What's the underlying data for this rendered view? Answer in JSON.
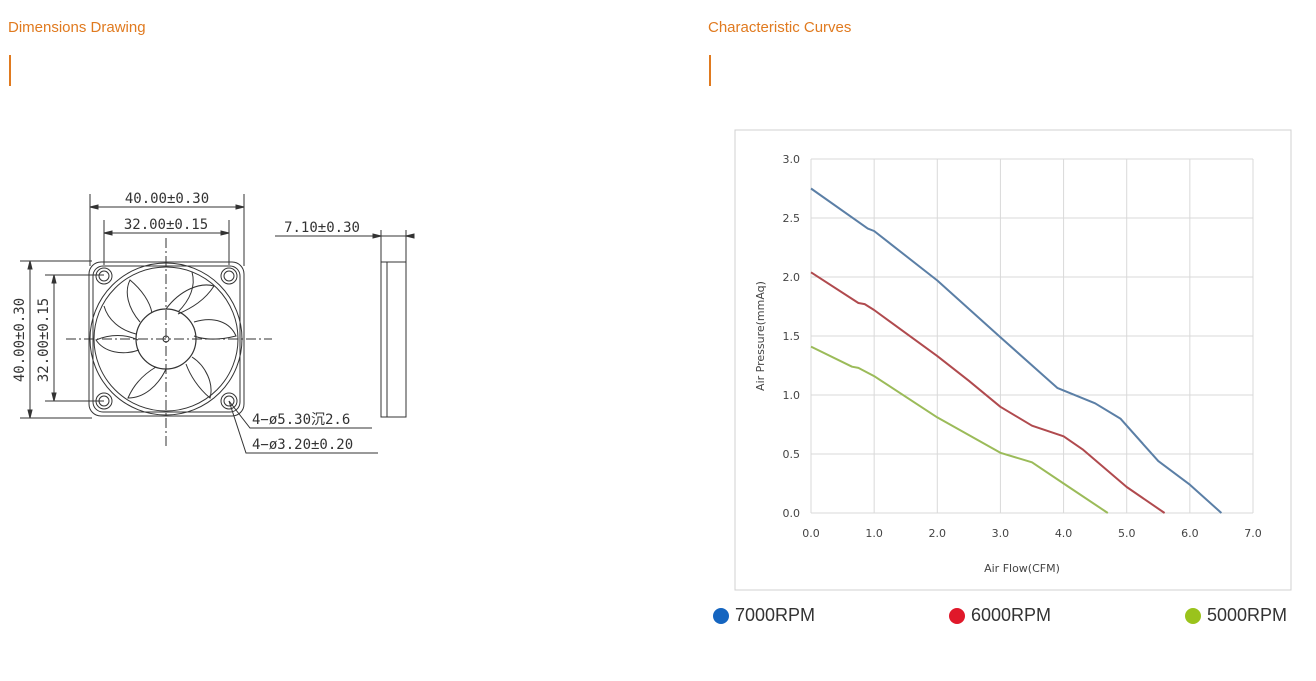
{
  "sections": {
    "dimensions_title": "Dimensions Drawing",
    "curves_title": "Characteristic Curves"
  },
  "drawing": {
    "outer_width": "40.00±0.30",
    "hole_spacing_h": "32.00±0.15",
    "thickness": "7.10±0.30",
    "outer_height": "40.00±0.30",
    "hole_spacing_v": "32.00±0.15",
    "countersink": "4−ø5.30沉2.6",
    "hole_dia": "4−ø3.20±0.20"
  },
  "colors": {
    "accent": "#e07a1f",
    "c7000": "#1565c0",
    "c6000": "#e0182a",
    "c5000": "#9ac31c"
  },
  "chart_data": {
    "type": "line",
    "xlabel": "Air Flow(CFM)",
    "ylabel": "Air Pressure(mmAq)",
    "xlim": [
      0,
      7
    ],
    "ylim": [
      0,
      3
    ],
    "xticks": [
      "0.0",
      "1.0",
      "2.0",
      "3.0",
      "4.0",
      "5.0",
      "6.0",
      "7.0"
    ],
    "yticks": [
      "0.0",
      "0.5",
      "1.0",
      "1.5",
      "2.0",
      "2.5",
      "3.0"
    ],
    "grid": true,
    "series": [
      {
        "name": "7000RPM",
        "color": "#5b7fa6",
        "x": [
          0,
          0.9,
          1.0,
          2.0,
          3.0,
          3.9,
          4.5,
          4.9,
          5.5,
          6.0,
          6.5
        ],
        "y": [
          2.75,
          2.41,
          2.39,
          1.97,
          1.49,
          1.06,
          0.93,
          0.8,
          0.44,
          0.24,
          0.0
        ]
      },
      {
        "name": "6000RPM",
        "color": "#b04a4e",
        "x": [
          0,
          0.75,
          0.85,
          1.0,
          2.0,
          2.5,
          3.0,
          3.5,
          4.0,
          4.3,
          5.0,
          5.6
        ],
        "y": [
          2.04,
          1.78,
          1.77,
          1.72,
          1.33,
          1.12,
          0.9,
          0.74,
          0.65,
          0.54,
          0.22,
          0.0
        ]
      },
      {
        "name": "5000RPM",
        "color": "#9bbb59",
        "x": [
          0,
          0.65,
          0.75,
          1.0,
          2.0,
          3.0,
          3.5,
          4.0,
          4.7
        ],
        "y": [
          1.41,
          1.24,
          1.23,
          1.16,
          0.81,
          0.51,
          0.43,
          0.25,
          0.0
        ]
      }
    ]
  },
  "legend": [
    {
      "label": "7000RPM",
      "color": "#1565c0"
    },
    {
      "label": "6000RPM",
      "color": "#e0182a"
    },
    {
      "label": "5000RPM",
      "color": "#9ac31c"
    }
  ]
}
